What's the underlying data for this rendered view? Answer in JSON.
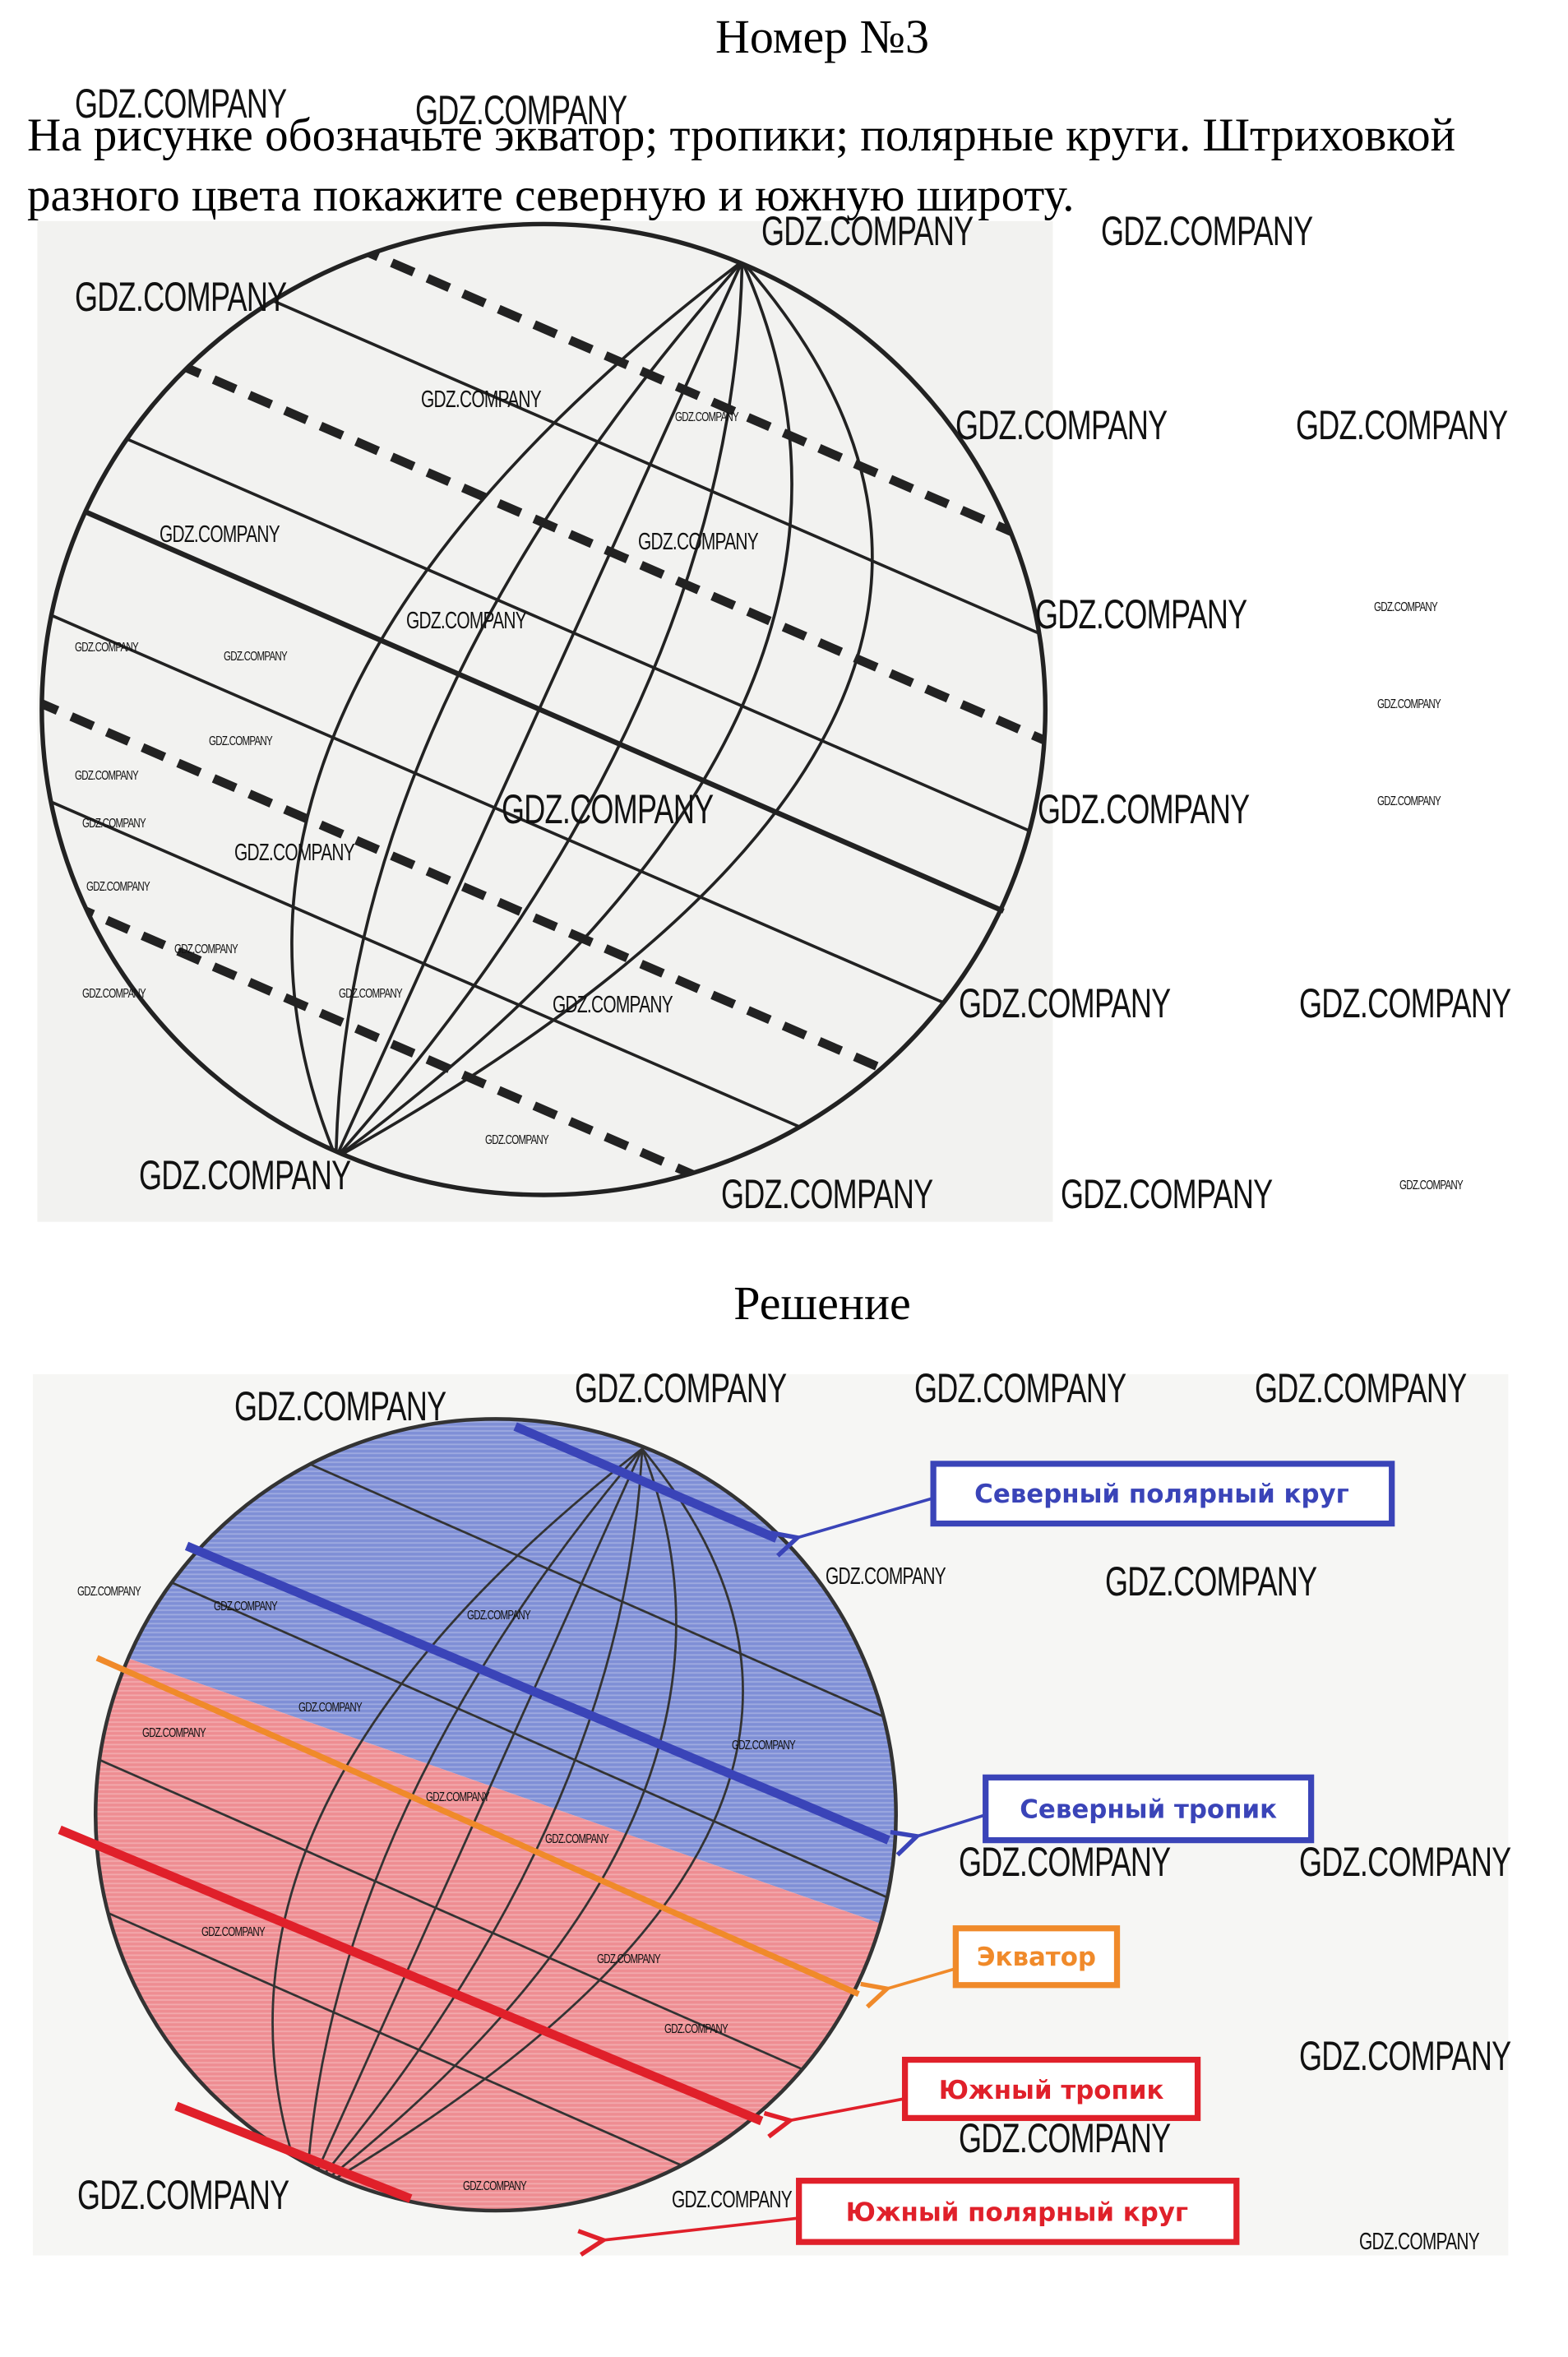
{
  "header": {
    "title": "Номер №3"
  },
  "task": {
    "text": "На рисунке обозначьте экватор; тропики; полярные круги. Штриховкой разного цвета покажите северную и южную широту."
  },
  "solution": {
    "heading": "Решение",
    "labels": {
      "north_polar": "Северный полярный круг",
      "north_tropic": "Северный тропик",
      "equator": "Экватор",
      "south_tropic": "Южный тропик",
      "south_polar": "Южный полярный круг"
    }
  },
  "watermark": "GDZ.COMPANY",
  "colors": {
    "north": "#3a44b8",
    "north_fill": "#7f8fd6",
    "south": "#e0202a",
    "south_fill": "#ee8d92",
    "equator": "#f08a2a",
    "line": "#222222"
  }
}
